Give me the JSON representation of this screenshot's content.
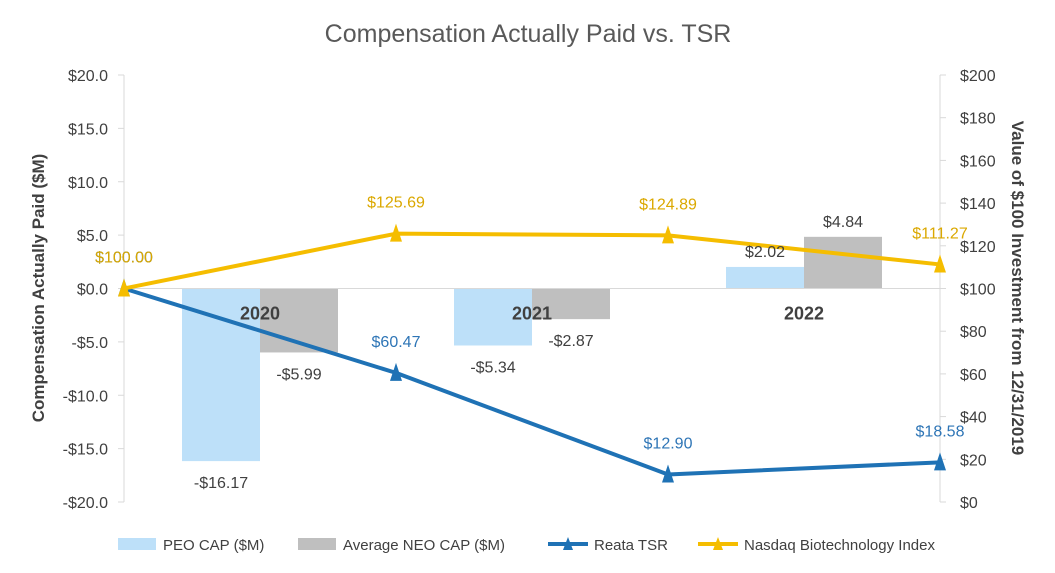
{
  "chart_data": {
    "type": "bar",
    "title": "Compensation Actually Paid vs. TSR",
    "categories": [
      "2020",
      "2021",
      "2022"
    ],
    "y_left": {
      "label": "Compensation Actually Paid ($M)",
      "range": [
        -20,
        20
      ],
      "ticks": [
        "-$20.0",
        "-$15.0",
        "-$10.0",
        "-$5.0",
        "$0.0",
        "$5.0",
        "$10.0",
        "$15.0",
        "$20.0"
      ]
    },
    "y_right": {
      "label": "Value of $100 Investment from 12/31/2019",
      "range": [
        0,
        200
      ],
      "ticks": [
        "$0",
        "$20",
        "$40",
        "$60",
        "$80",
        "$100",
        "$120",
        "$140",
        "$160",
        "$180",
        "$200"
      ]
    },
    "bar_series": [
      {
        "name": "PEO CAP ($M)",
        "color": "#bde0f9",
        "values": [
          -16.17,
          -5.34,
          2.02
        ],
        "labels": [
          "-$16.17",
          "-$5.34",
          "$2.02"
        ]
      },
      {
        "name": "Average NEO CAP ($M)",
        "color": "#bfbfbf",
        "values": [
          -5.99,
          -2.87,
          4.84
        ],
        "labels": [
          "-$5.99",
          "-$2.87",
          "$4.84"
        ]
      }
    ],
    "line_series": [
      {
        "name": "Reata TSR",
        "color": "#1f72b5",
        "x": [
          "2019",
          "2020",
          "2021",
          "2022"
        ],
        "values": [
          100.0,
          60.47,
          12.9,
          18.58
        ],
        "labels": [
          "$100.00",
          "$60.47",
          "$12.90",
          "$18.58"
        ]
      },
      {
        "name": "Nasdaq Biotechnology Index",
        "color": "#f5bd00",
        "x": [
          "2019",
          "2020",
          "2021",
          "2022"
        ],
        "values": [
          100.0,
          125.69,
          124.89,
          111.27
        ],
        "labels": [
          "$100.00",
          "$125.69",
          "$124.89",
          "$111.27"
        ]
      }
    ],
    "legend_position": "bottom"
  }
}
